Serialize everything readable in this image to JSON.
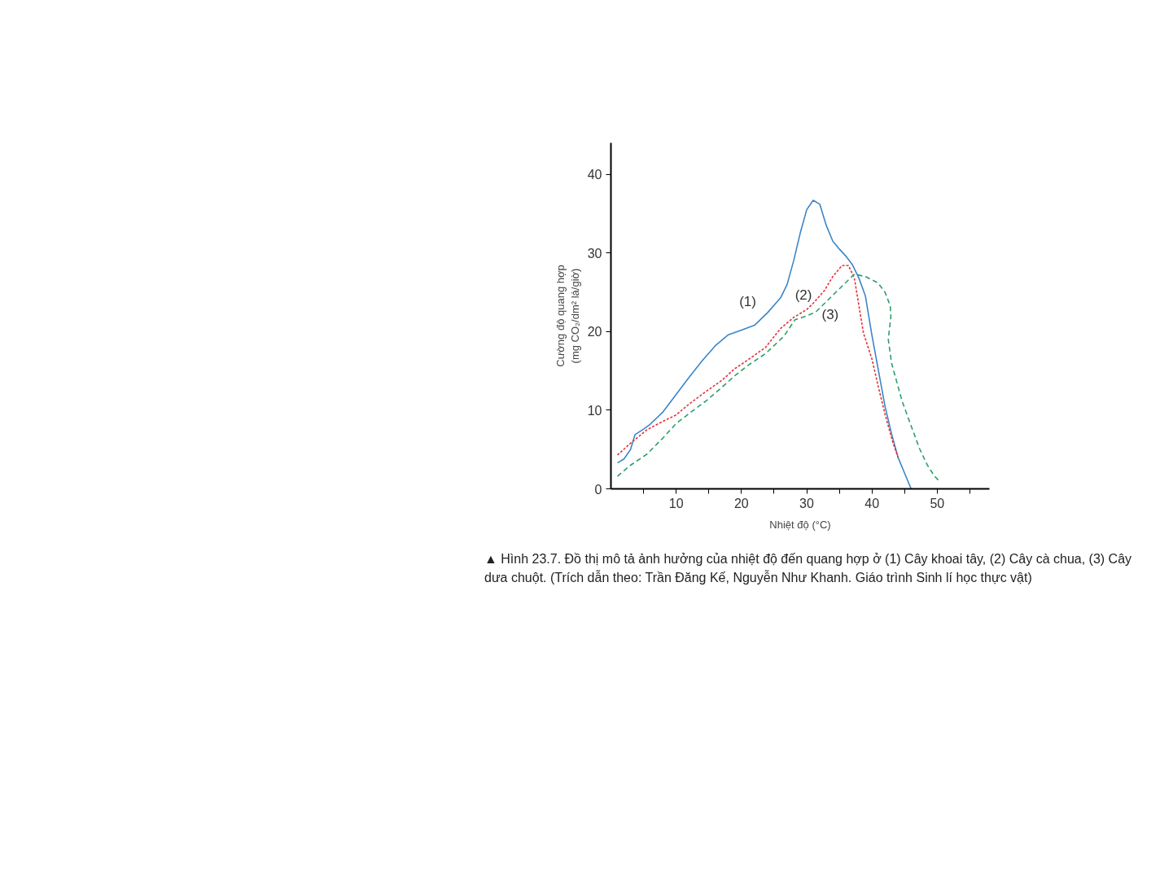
{
  "chart_data": {
    "type": "line",
    "xlabel": "Nhiệt độ (°C)",
    "ylabel": "Cường độ quang hợp\n(mg CO₂/dm² lá/giờ)",
    "xlim": [
      0,
      58
    ],
    "ylim": [
      0,
      44
    ],
    "xticks": [
      {
        "value": 5,
        "label": null
      },
      10,
      {
        "value": 15,
        "label": null
      },
      20,
      {
        "value": 25,
        "label": null
      },
      30,
      {
        "value": 35,
        "label": null
      },
      40,
      {
        "value": 45,
        "label": null
      },
      50,
      {
        "value": 55,
        "label": null
      }
    ],
    "yticks": [
      0,
      10,
      20,
      30,
      40
    ],
    "grid": false,
    "marker": "none",
    "series": [
      {
        "name": "(1)",
        "color": "#3a86c8",
        "line_style": "solid",
        "x": [
          1,
          2,
          3,
          3.7,
          5,
          6,
          8,
          10,
          12,
          14,
          16,
          18,
          20,
          22,
          24,
          26,
          27,
          28,
          29,
          30,
          31,
          32,
          33,
          34,
          35,
          36,
          37,
          38,
          39,
          40,
          41,
          42,
          43,
          44,
          45,
          46
        ],
        "values": [
          3.3,
          3.8,
          5,
          6.9,
          7.6,
          8.2,
          9.8,
          12,
          14.2,
          16.3,
          18.2,
          19.6,
          20.2,
          20.8,
          22.4,
          24.3,
          26,
          29,
          32.5,
          35.5,
          36.7,
          36.2,
          33.5,
          31.5,
          30.5,
          29.6,
          28.5,
          26.8,
          24.5,
          19.5,
          15,
          10.5,
          7,
          4,
          2,
          0
        ]
      },
      {
        "name": "(2)",
        "color": "#e0323a",
        "line_style": "dotted",
        "x": [
          1,
          3,
          5.5,
          8,
          10,
          12,
          14.6,
          17,
          19,
          21,
          23.7,
          26,
          28,
          30,
          31,
          32.7,
          34,
          35.4,
          36.4,
          37.3,
          38.7,
          40,
          41,
          42,
          43.2,
          44
        ],
        "values": [
          4.3,
          5.8,
          7.5,
          8.6,
          9.4,
          10.8,
          12.4,
          13.8,
          15.3,
          16.4,
          18,
          20.4,
          21.8,
          22.8,
          23.6,
          25.2,
          27,
          28.4,
          28.4,
          26.8,
          19.8,
          16.5,
          12.9,
          9.5,
          5.9,
          4
        ]
      },
      {
        "name": "(3)",
        "color": "#2e9e6a",
        "line_style": "dashed",
        "x": [
          1,
          3,
          5.5,
          8,
          10,
          12,
          14.6,
          17,
          19,
          21,
          23.7,
          26.5,
          28.2,
          30,
          31.4,
          34.1,
          37.3,
          39,
          40.9,
          42,
          42.8,
          42.9,
          42.5,
          43,
          44.6,
          46,
          47.3,
          48.5,
          49.6,
          50.4
        ],
        "values": [
          1.6,
          3,
          4.4,
          6.5,
          8.3,
          9.6,
          11.2,
          12.9,
          14.4,
          15.7,
          17.2,
          19.4,
          21.5,
          22,
          22.5,
          24.7,
          27.3,
          27,
          26.2,
          25,
          23.3,
          21.9,
          19,
          16,
          11.2,
          8,
          5.1,
          3,
          1.6,
          0.9
        ]
      }
    ],
    "annotations": [
      "▲ Hình 23.7. Đồ thị mô tả ảnh hưởng của nhiệt độ đến quang hợp ở (1) Cây khoai tây, (2) Cây cà chua, (3) Cây dưa chuột. (Trích dẫn theo: Trần Đăng Kế, Nguyễn Như Khanh. Giáo trình Sinh lí học thực vật)"
    ]
  }
}
